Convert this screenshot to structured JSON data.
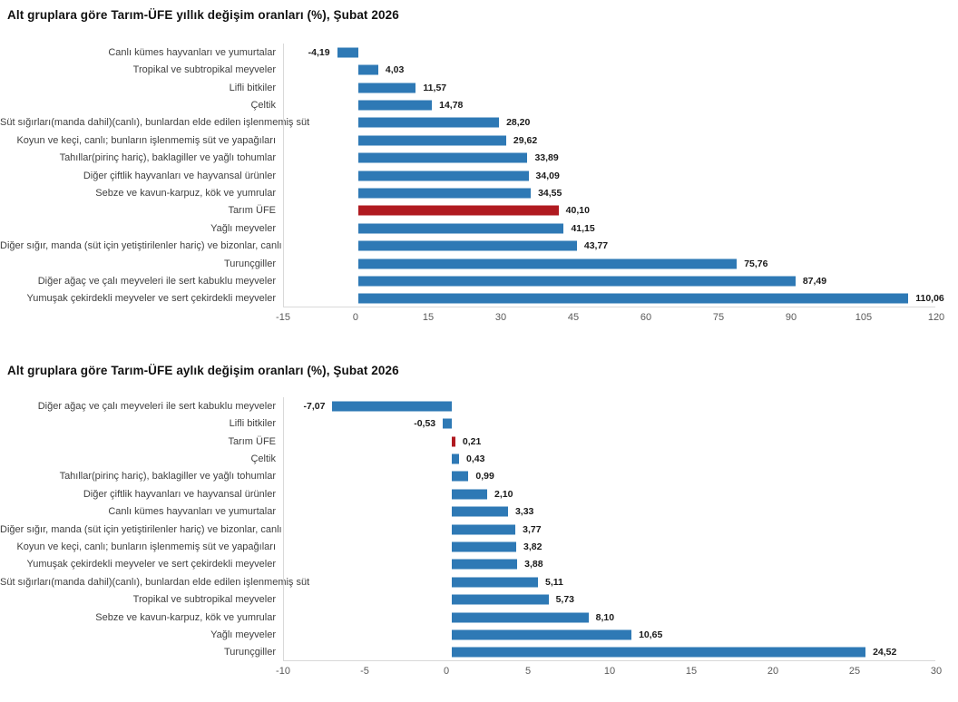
{
  "colors": {
    "bar": "#2e79b5",
    "highlight": "#b01a20",
    "axis_line": "#d9d9d9",
    "category_label": "#3f3f3f",
    "tick_label": "#595959",
    "value_label": "#1a1a1a"
  },
  "chart_data": [
    {
      "type": "bar",
      "orientation": "horizontal",
      "title": "Alt gruplara göre Tarım-ÜFE yıllık değişim oranları (%), Şubat 2026",
      "categories": [
        "Canlı kümes hayvanları ve yumurtalar",
        "Tropikal ve subtropikal meyveler",
        "Lifli bitkiler",
        "Çeltik",
        "Süt sığırları(manda dahil)(canlı), bunlardan elde edilen işlenmemiş süt",
        "Koyun ve keçi, canlı; bunların işlenmemiş süt ve yapağıları",
        "Tahıllar(pirinç hariç), baklagiller ve yağlı tohumlar",
        "Diğer çiftlik hayvanları ve hayvansal ürünler",
        "Sebze ve kavun-karpuz, kök ve yumrular",
        "Tarım ÜFE",
        "Yağlı meyveler",
        "Diğer sığır, manda (süt için yetiştirilenler hariç) ve bizonlar, canlı",
        "Turunçgiller",
        "Diğer ağaç ve çalı meyveleri ile sert kabuklu meyveler",
        "Yumuşak çekirdekli meyveler ve sert çekirdekli meyveler"
      ],
      "values": [
        -4.19,
        4.03,
        11.57,
        14.78,
        28.2,
        29.62,
        33.89,
        34.09,
        34.55,
        40.1,
        41.15,
        43.77,
        75.76,
        87.49,
        110.06
      ],
      "value_labels": [
        "-4,19",
        "4,03",
        "11,57",
        "14,78",
        "28,20",
        "29,62",
        "33,89",
        "34,09",
        "34,55",
        "40,10",
        "41,15",
        "43,77",
        "75,76",
        "87,49",
        "110,06"
      ],
      "highlight_category": "Tarım ÜFE",
      "xlim": [
        -15,
        120
      ],
      "ticks": [
        "-15",
        "0",
        "15",
        "30",
        "45",
        "60",
        "75",
        "90",
        "105",
        "120"
      ],
      "grid": false,
      "legend": false
    },
    {
      "type": "bar",
      "orientation": "horizontal",
      "title": "Alt gruplara göre Tarım-ÜFE aylık değişim oranları (%), Şubat 2026",
      "categories": [
        "Diğer ağaç ve çalı meyveleri ile sert kabuklu meyveler",
        "Lifli bitkiler",
        "Tarım ÜFE",
        "Çeltik",
        "Tahıllar(pirinç hariç), baklagiller ve yağlı tohumlar",
        "Diğer çiftlik hayvanları ve hayvansal ürünler",
        "Canlı kümes hayvanları ve yumurtalar",
        "Diğer sığır, manda (süt için yetiştirilenler hariç) ve bizonlar, canlı",
        "Koyun ve keçi, canlı; bunların işlenmemiş süt ve yapağıları",
        "Yumuşak çekirdekli meyveler ve sert çekirdekli meyveler",
        "Süt sığırları(manda dahil)(canlı), bunlardan elde edilen işlenmemiş süt",
        "Tropikal ve subtropikal meyveler",
        "Sebze ve kavun-karpuz, kök ve yumrular",
        "Yağlı meyveler",
        "Turunçgiller"
      ],
      "values": [
        -7.07,
        -0.53,
        0.21,
        0.43,
        0.99,
        2.1,
        3.33,
        3.77,
        3.82,
        3.88,
        5.11,
        5.73,
        8.1,
        10.65,
        24.52
      ],
      "value_labels": [
        "-7,07",
        "-0,53",
        "0,21",
        "0,43",
        "0,99",
        "2,10",
        "3,33",
        "3,77",
        "3,82",
        "3,88",
        "5,11",
        "5,73",
        "8,10",
        "10,65",
        "24,52"
      ],
      "highlight_category": "Tarım ÜFE",
      "xlim": [
        -10,
        30
      ],
      "ticks": [
        "-10",
        "-5",
        "0",
        "5",
        "10",
        "15",
        "20",
        "25",
        "30"
      ],
      "grid": false,
      "legend": false
    }
  ]
}
